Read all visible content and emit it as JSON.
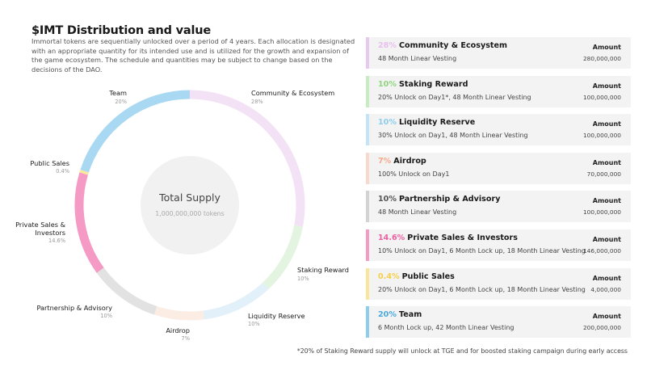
{
  "header": {
    "title": "$IMT Distribution and value",
    "description": "Immortal tokens are sequentially unlocked over a period of 4 years. Each allocation is designated with an appropriate quantity for its intended use and is utilized for the growth and expansion of the game ecosystem. The schedule and quantities may be subject to change based on the decisions of the DAO."
  },
  "center": {
    "title": "Total Supply",
    "subtitle": "1,000,000,000 tokens"
  },
  "chart_data": {
    "type": "pie",
    "donut": true,
    "center_title": "Total Supply",
    "center_subtitle": "1,000,000,000 tokens",
    "slices": [
      {
        "name": "Community & Ecosystem",
        "value": 28,
        "pct_label": "28%",
        "color": "#f3e1f5"
      },
      {
        "name": "Staking Reward",
        "value": 10,
        "pct_label": "10%",
        "color": "#e3f5e0"
      },
      {
        "name": "Liquidity Reserve",
        "value": 10,
        "pct_label": "10%",
        "color": "#e2f0fa"
      },
      {
        "name": "Airdrop",
        "value": 7,
        "pct_label": "7%",
        "color": "#fbede4"
      },
      {
        "name": "Partnership & Advisory",
        "value": 10,
        "pct_label": "10%",
        "color": "#e2e2e2"
      },
      {
        "name": "Private Sales & Investors",
        "value": 14.6,
        "pct_label": "14.6%",
        "color": "#f49ac5"
      },
      {
        "name": "Public Sales",
        "value": 0.4,
        "pct_label": "0.4%",
        "color": "#fbe79a"
      },
      {
        "name": "Team",
        "value": 20,
        "pct_label": "20%",
        "color": "#a9d9f2"
      }
    ]
  },
  "allocations": [
    {
      "pct": "28%",
      "name": "Community & Ecosystem",
      "vesting": "48 Month Linear Vesting",
      "amount_label": "Amount",
      "amount": "280,000,000",
      "color": "#e8bfee",
      "bar": "#e8c8ee"
    },
    {
      "pct": "10%",
      "name": "Staking Reward",
      "vesting": "20% Unlock on Day1*, 48 Month Linear Vesting",
      "amount_label": "Amount",
      "amount": "100,000,000",
      "color": "#8fd67e",
      "bar": "#c7ecc0"
    },
    {
      "pct": "10%",
      "name": "Liquidity Reserve",
      "vesting": "30% Unlock on Day1, 48 Month Linear Vesting",
      "amount_label": "Amount",
      "amount": "100,000,000",
      "color": "#8fcdee",
      "bar": "#c2e4f6"
    },
    {
      "pct": "7%",
      "name": "Airdrop",
      "vesting": "100% Unlock on Day1",
      "amount_label": "Amount",
      "amount": "70,000,000",
      "color": "#f5a98a",
      "bar": "#f8d9cb"
    },
    {
      "pct": "10%",
      "name": "Partnership & Advisory",
      "vesting": "48 Month Linear Vesting",
      "amount_label": "Amount",
      "amount": "100,000,000",
      "color": "#555555",
      "bar": "#d3d3d3"
    },
    {
      "pct": "14.6%",
      "name": "Private Sales & Investors",
      "vesting": "10% Unlock on Day1, 6 Month Lock up, 18 Month Linear Vesting",
      "amount_label": "Amount",
      "amount": "146,000,000",
      "color": "#ee5fa0",
      "bar": "#f49ac5"
    },
    {
      "pct": "0.4%",
      "name": "Public Sales",
      "vesting": "20% Unlock on Day1, 6 Month Lock up, 18 Month Linear Vesting",
      "amount_label": "Amount",
      "amount": "4,000,000",
      "color": "#f6cf4a",
      "bar": "#fbe59a"
    },
    {
      "pct": "20%",
      "name": "Team",
      "vesting": "6 Month Lock up, 42 Month Linear Vesting",
      "amount_label": "Amount",
      "amount": "200,000,000",
      "color": "#4aaae0",
      "bar": "#8fcdee"
    }
  ],
  "footnote": "*20% of Staking Reward supply will unlock at TGE and for boosted staking campaign during early access"
}
